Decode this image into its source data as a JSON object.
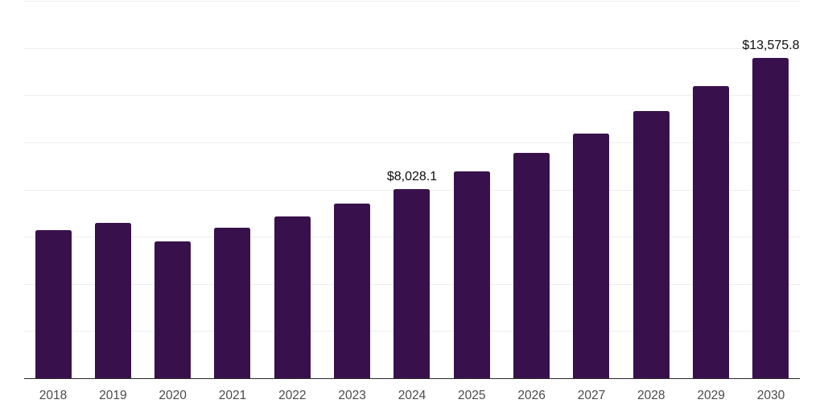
{
  "chart_data": {
    "type": "bar",
    "title": "",
    "xlabel": "",
    "ylabel": "",
    "categories": [
      "2018",
      "2019",
      "2020",
      "2021",
      "2022",
      "2023",
      "2024",
      "2025",
      "2026",
      "2027",
      "2028",
      "2029",
      "2030"
    ],
    "values": [
      6280,
      6600,
      5800,
      6390,
      6870,
      7410,
      8028.1,
      8780,
      9540,
      10360,
      11320,
      12390,
      13575.8
    ],
    "data_labels": {
      "2024": "$8,028.1",
      "2030": "$13,575.8"
    },
    "ylim": [
      0,
      16000
    ],
    "grid_step": 2000,
    "grid": "horizontal-only",
    "legend": "none",
    "y_axis_tick_labels": "none",
    "colors": {
      "bar": "#38114c",
      "gridline": "#eeeeee",
      "axis_line": "#2a2a2a",
      "data_label_text": "#0d0d0d",
      "x_tick_text": "#4a4a4a",
      "background": "#ffffff"
    }
  }
}
